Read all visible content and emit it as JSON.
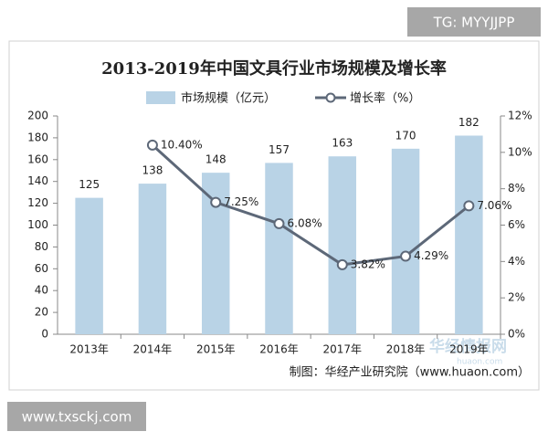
{
  "chart_data": {
    "type": "bar",
    "title": "2013-2019年中国文具行业市场规模及增长率",
    "categories": [
      "2013年",
      "2014年",
      "2015年",
      "2016年",
      "2017年",
      "2018年",
      "2019年"
    ],
    "series": [
      {
        "name": "市场规模（亿元）",
        "type": "bar",
        "color": "#b9d3e6",
        "values": [
          125,
          138,
          148,
          157,
          163,
          170,
          182
        ]
      },
      {
        "name": "增长率（%）",
        "type": "line",
        "axis": "y2",
        "color": "#5d6878",
        "values": [
          null,
          10.4,
          7.25,
          6.08,
          3.82,
          4.29,
          7.06
        ],
        "value_labels": [
          null,
          "10.40%",
          "7.25%",
          "6.08%",
          "3.82%",
          "4.29%",
          "7.06%"
        ]
      }
    ],
    "ylim": [
      0,
      200
    ],
    "yticks": [
      0,
      20,
      40,
      60,
      80,
      100,
      120,
      140,
      160,
      180,
      200
    ],
    "y2lim": [
      0,
      12
    ],
    "y2ticks": [
      {
        "value": 0,
        "label": "0%"
      },
      {
        "value": 2,
        "label": "2%"
      },
      {
        "value": 4,
        "label": "4%"
      },
      {
        "value": 6,
        "label": "6%"
      },
      {
        "value": 8,
        "label": "8%"
      },
      {
        "value": 10,
        "label": "10%"
      },
      {
        "value": 12,
        "label": "12%"
      }
    ],
    "source": "制图：华经产业研究院（www.huaon.com）"
  },
  "watermarks": {
    "top": "TG: MYYJJPP",
    "bottom": "www.txsckj.com",
    "logo": "华经情报网",
    "logo_url": "huaon.com"
  }
}
